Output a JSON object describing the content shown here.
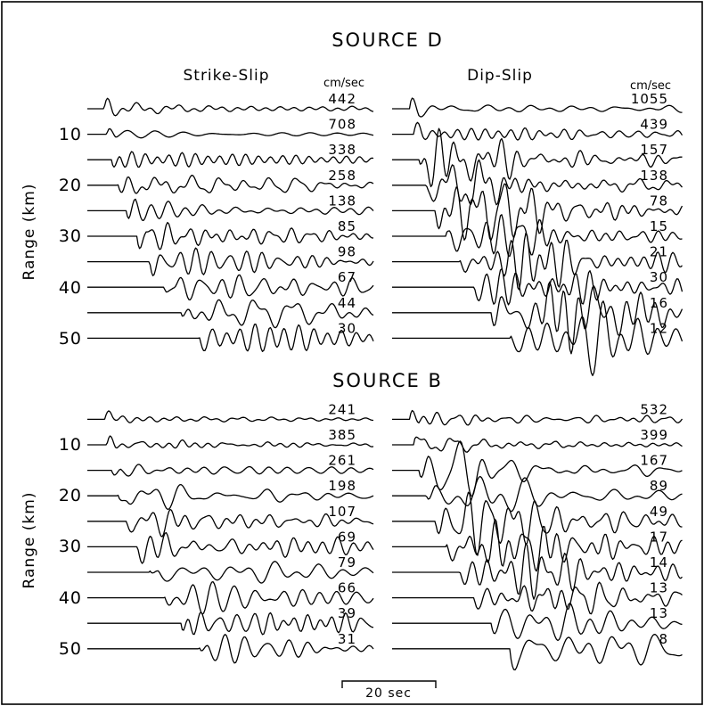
{
  "chart_data": {
    "type": "line",
    "xlabel": "",
    "ylabel": "Range (km)",
    "ylim": [
      0,
      50
    ],
    "yticks": [
      "10",
      "20",
      "30",
      "40",
      "50"
    ],
    "units": "cm/sec",
    "scale_bar": "20 sec",
    "panels": [
      {
        "title": "SOURCE D",
        "columns": [
          {
            "name": "Strike-Slip",
            "ranges": [
              5,
              10,
              15,
              20,
              25,
              30,
              35,
              40,
              45,
              50
            ],
            "peak_amplitudes": [
              442,
              708,
              338,
              258,
              138,
              85,
              98,
              67,
              44,
              30
            ]
          },
          {
            "name": "Dip-Slip",
            "ranges": [
              5,
              10,
              15,
              20,
              25,
              30,
              35,
              40,
              45,
              50
            ],
            "peak_amplitudes": [
              1055,
              439,
              157,
              138,
              78,
              15,
              21,
              30,
              16,
              12
            ]
          }
        ]
      },
      {
        "title": "SOURCE B",
        "columns": [
          {
            "name": "Strike-Slip",
            "ranges": [
              5,
              10,
              15,
              20,
              25,
              30,
              35,
              40,
              45,
              50
            ],
            "peak_amplitudes": [
              241,
              385,
              261,
              198,
              107,
              69,
              79,
              66,
              39,
              31
            ]
          },
          {
            "name": "Dip-Slip",
            "ranges": [
              5,
              10,
              15,
              20,
              25,
              30,
              35,
              40,
              45,
              50
            ],
            "peak_amplitudes": [
              532,
              399,
              167,
              89,
              49,
              17,
              14,
              13,
              13,
              8
            ]
          }
        ]
      }
    ]
  }
}
